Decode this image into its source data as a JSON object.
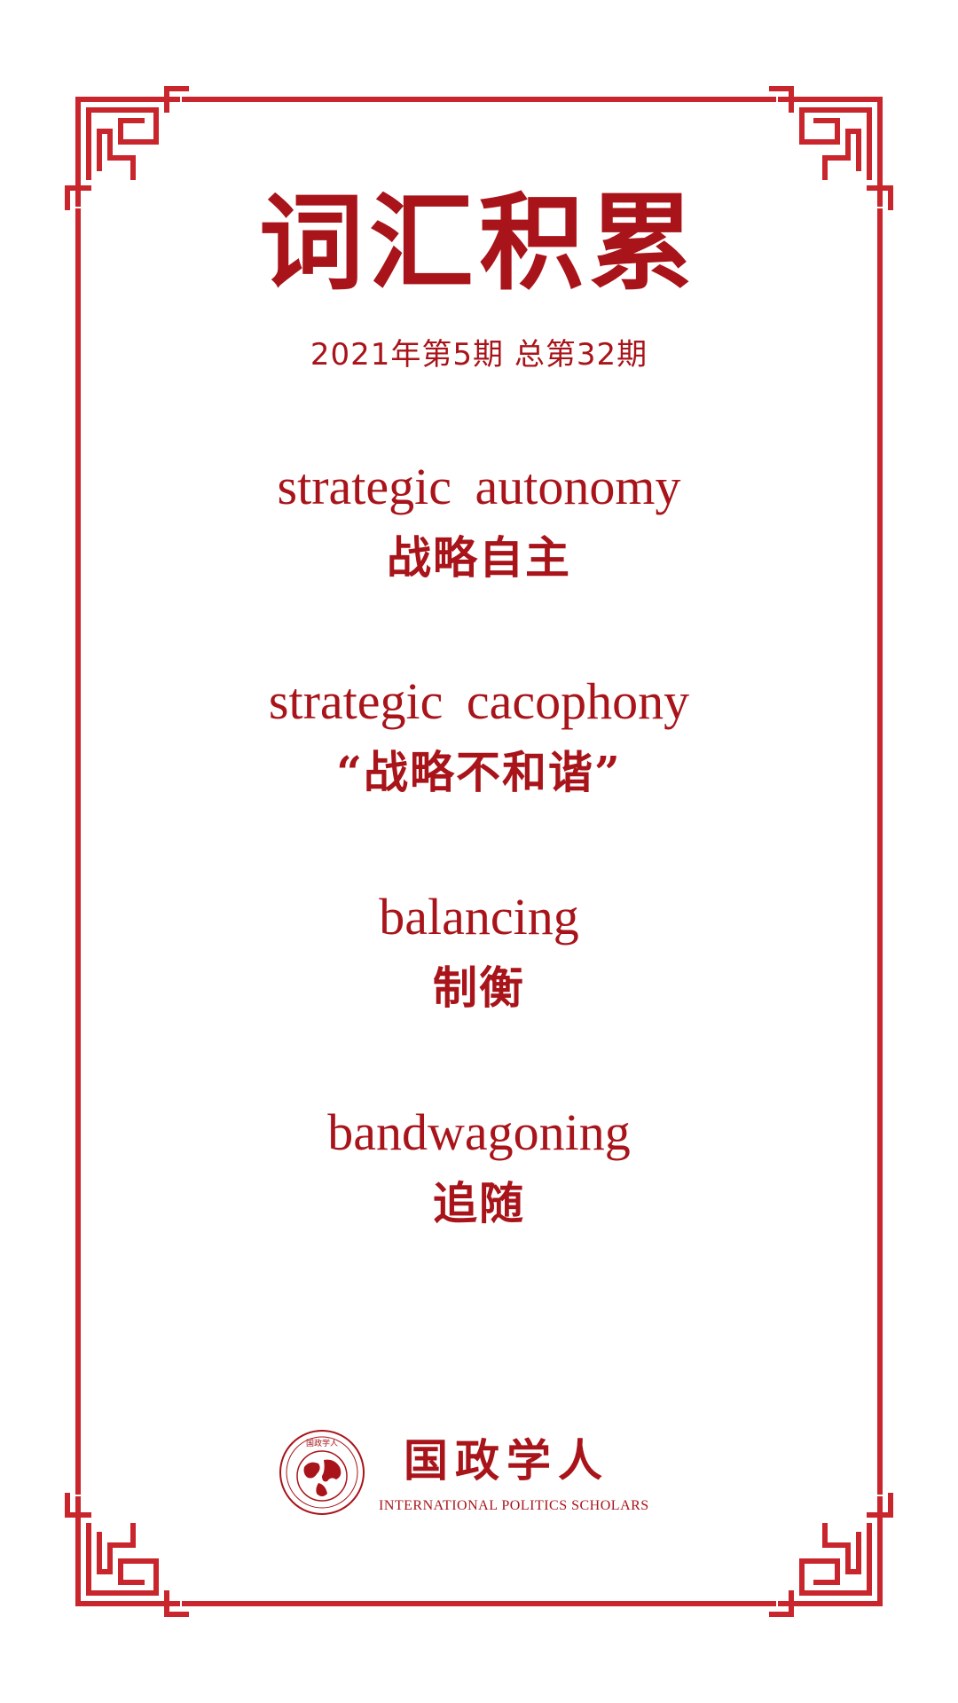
{
  "header": {
    "title": "词汇积累",
    "issue": "2021年第5期 总第32期"
  },
  "terms": [
    {
      "en": "strategic autonomy",
      "zh": "战略自主"
    },
    {
      "en": "strategic cacophony",
      "zh": "“战略不和谐”"
    },
    {
      "en": "balancing",
      "zh": "制衡"
    },
    {
      "en": "bandwagoning",
      "zh": "追随"
    }
  ],
  "footer": {
    "brand_zh": "国政学人",
    "brand_en": "INTERNATIONAL POLITICS SCHOLARS",
    "logo_icon": "globe-seal-icon",
    "logo_ring_text": "国政学人"
  },
  "colors": {
    "accent": "#a8141a",
    "frame": "#c9252c",
    "background": "#ffffff"
  }
}
